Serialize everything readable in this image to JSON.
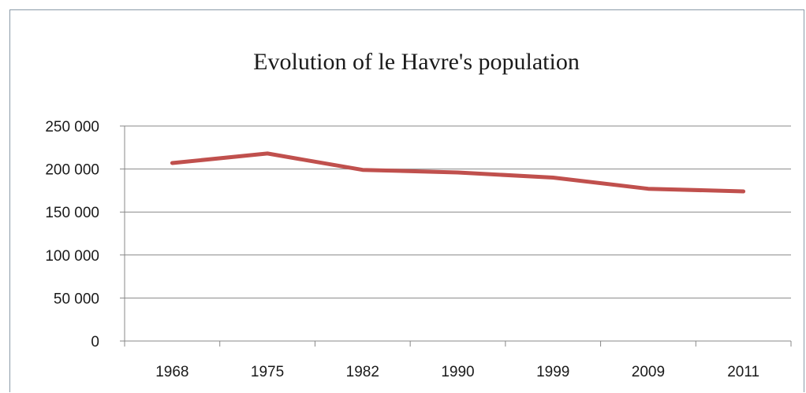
{
  "chart_data": {
    "type": "line",
    "title": "Evolution of le Havre's population",
    "categories": [
      "1968",
      "1975",
      "1982",
      "1990",
      "1999",
      "2009",
      "2011"
    ],
    "series": [
      {
        "values": [
          207000,
          218000,
          199000,
          196000,
          190000,
          177000,
          174000
        ]
      }
    ],
    "y_ticks": [
      "0",
      "50 000",
      "100 000",
      "150 000",
      "200 000",
      "250 000"
    ],
    "ylim": [
      0,
      250000
    ],
    "grid": true,
    "legend": "none",
    "colors": {
      "line": "#c0504d",
      "grid": "#888888",
      "axis": "#888888"
    }
  }
}
